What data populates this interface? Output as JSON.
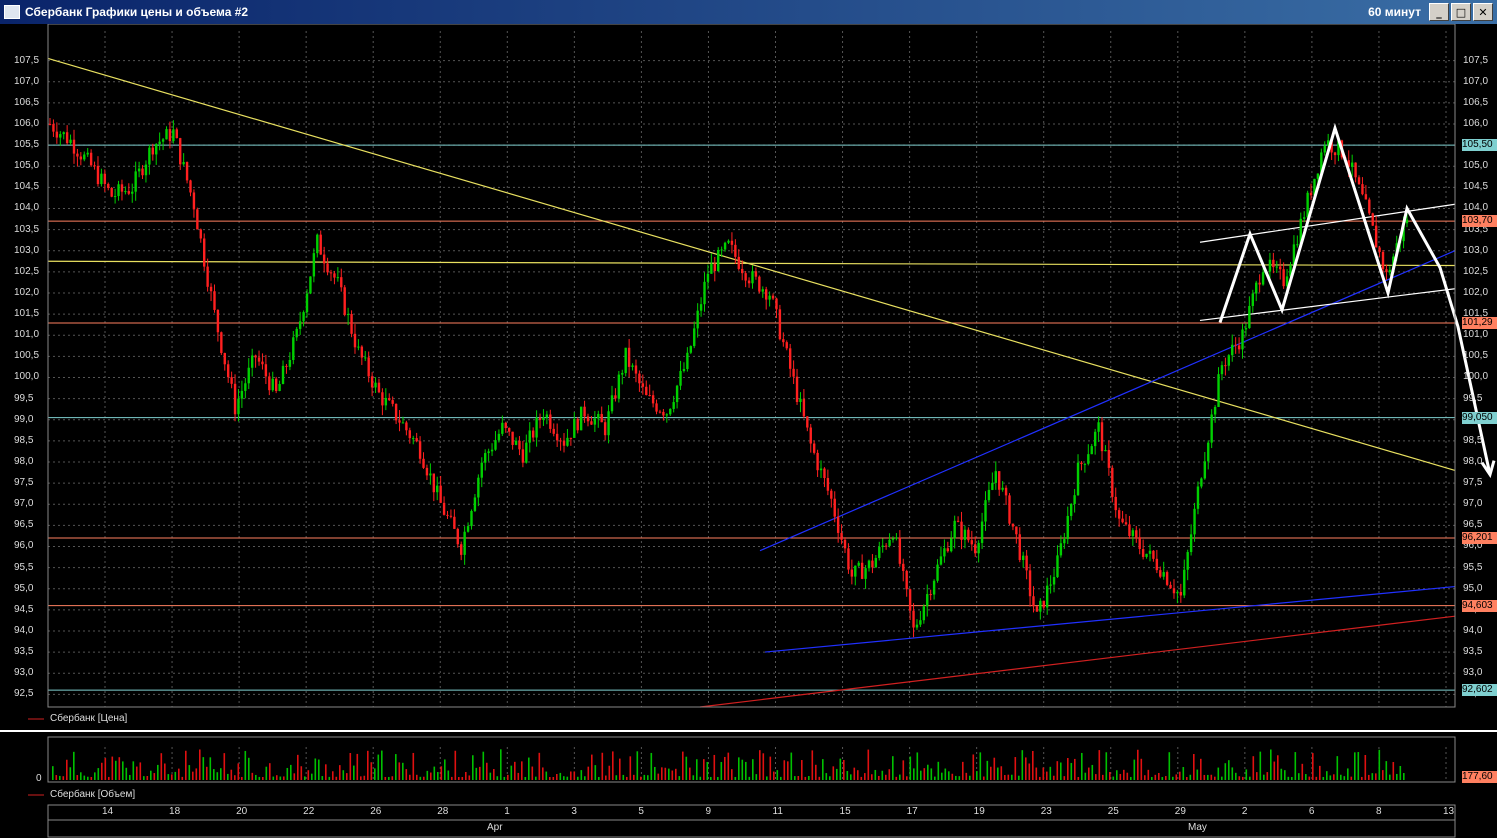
{
  "window": {
    "title": "Сбербанк Графики цены и объема #2",
    "timeframe": "60 минут",
    "minimize_glyph": "_",
    "maximize_glyph": "□",
    "close_glyph": "✕"
  },
  "chart_data": [
    {
      "type": "candlestick",
      "legend": "Сбербанк [Цена]",
      "ylim": [
        92.2,
        108.2
      ],
      "y_ticks": [
        "92,5",
        "93,0",
        "93,5",
        "94,0",
        "94,5",
        "95,0",
        "95,5",
        "96,0",
        "96,5",
        "97,0",
        "97,5",
        "98,0",
        "98,5",
        "99,0",
        "99,5",
        "100,0",
        "100,5",
        "101,0",
        "101,5",
        "102,0",
        "102,5",
        "103,0",
        "103,5",
        "104,0",
        "104,5",
        "105,0",
        "105,5",
        "106,0",
        "106,5",
        "107,0",
        "107,5"
      ],
      "levels": [
        {
          "label": "105,50",
          "value": 105.5,
          "color": "#7fd0d0"
        },
        {
          "label": "103,70",
          "value": 103.7,
          "color": "#ff8060"
        },
        {
          "label": "101,29",
          "value": 101.29,
          "color": "#ff8060"
        },
        {
          "label": "99,050",
          "value": 99.05,
          "color": "#7fd0d0"
        },
        {
          "label": "96,201",
          "value": 96.2,
          "color": "#ff8060"
        },
        {
          "label": "94,603",
          "value": 94.6,
          "color": "#ff8060"
        },
        {
          "label": "92,602",
          "value": 92.6,
          "color": "#7fd0d0"
        }
      ],
      "candle_colors": {
        "up": "#00d000",
        "down": "#ff2020"
      },
      "candles_approx": [
        106.0,
        105.6,
        105.0,
        104.3,
        104.5,
        105.5,
        105.8,
        104.1,
        101.5,
        99.3,
        100.5,
        99.6,
        101.0,
        103.2,
        102.2,
        100.6,
        99.6,
        99.0,
        98.3,
        97.0,
        96.0,
        98.0,
        98.8,
        98.2,
        99.2,
        98.5,
        99.2,
        98.8,
        100.5,
        99.5,
        99.2,
        100.4,
        102.5,
        103.1,
        102.4,
        102.0,
        100.2,
        98.4,
        97.1,
        95.3,
        95.6,
        96.4,
        94.0,
        95.3,
        96.5,
        96.0,
        97.8,
        96.2,
        94.3,
        95.6,
        97.8,
        98.8,
        96.6,
        96.0,
        95.5,
        94.8,
        97.8,
        100.3,
        101.0,
        102.7,
        102.3,
        103.9,
        105.6,
        105.3,
        104.0,
        102.4,
        103.8
      ],
      "date_labels": [
        "14",
        "18",
        "20",
        "22",
        "26",
        "28",
        "1",
        "3",
        "5",
        "9",
        "11",
        "15",
        "17",
        "19",
        "23",
        "25",
        "29",
        "2",
        "6",
        "8",
        "13"
      ],
      "month_labels": [
        "Apr",
        "May"
      ]
    },
    {
      "type": "bar",
      "legend": "Сбербанк [Объем]",
      "zero_label": "0",
      "last_value_label": "177,60"
    }
  ]
}
